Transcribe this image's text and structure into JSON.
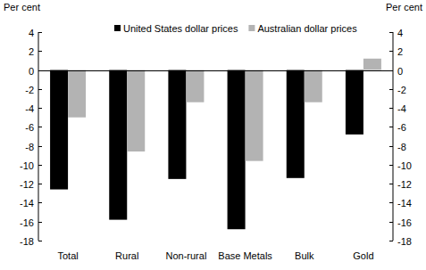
{
  "chart_data": {
    "type": "bar",
    "y_label": "Per cent",
    "categories": [
      "Total",
      "Rural",
      "Non-rural",
      "Base Metals",
      "Bulk",
      "Gold"
    ],
    "series": [
      {
        "name": "United States dollar prices",
        "color": "#000000",
        "values": [
          -12.6,
          -15.8,
          -11.5,
          -16.8,
          -11.4,
          -6.8
        ]
      },
      {
        "name": "Australian dollar prices",
        "color": "#b3b3b3",
        "values": [
          -5.0,
          -8.6,
          -3.4,
          -9.6,
          -3.4,
          1.2
        ]
      }
    ],
    "ylim": [
      -18,
      4
    ],
    "yticks": [
      -18,
      -16,
      -14,
      -12,
      -10,
      -8,
      -6,
      -4,
      -2,
      0,
      2,
      4
    ],
    "grid": false,
    "legend": "top"
  }
}
